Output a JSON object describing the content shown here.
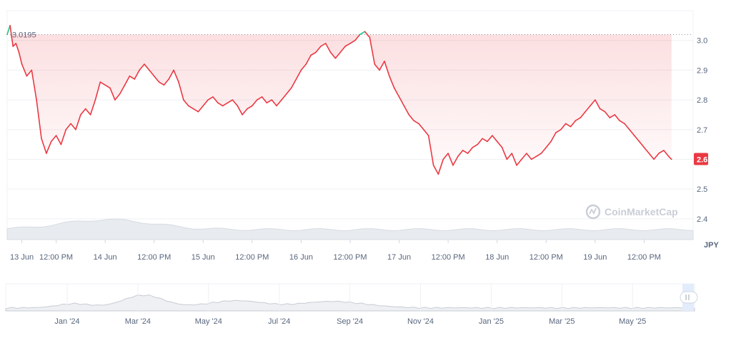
{
  "chart_data": {
    "type": "line",
    "ylabel": "JPY",
    "ylim": [
      2.33,
      3.1
    ],
    "yticks": [
      3.0,
      2.9,
      2.8,
      2.7,
      2.6,
      2.5,
      2.4
    ],
    "ytick_labels": [
      "3.0",
      "2.9",
      "2.8",
      "2.7",
      "2.6",
      "2.5",
      "2.4"
    ],
    "xlim": [
      0,
      7
    ],
    "xticks": [
      0.15,
      0.5,
      1.0,
      1.5,
      2.0,
      2.5,
      3.0,
      3.5,
      4.0,
      4.5,
      5.0,
      5.5,
      6.0,
      6.5
    ],
    "xtick_labels": [
      "13 Jun",
      "12:00 PM",
      "14 Jun",
      "12:00 PM",
      "15 Jun",
      "12:00 PM",
      "16 Jun",
      "12:00 PM",
      "17 Jun",
      "12:00 PM",
      "18 Jun",
      "12:00 PM",
      "19 Jun",
      "12:00 PM"
    ],
    "reference_line": {
      "value": 3.0195,
      "label": "3.0195"
    },
    "current_price": {
      "value": 2.6,
      "label": "2.6"
    },
    "colors": {
      "down": "#ea3943",
      "up": "#16c784",
      "current_badge": "#ea3943"
    },
    "watermark": "CoinMarketCap",
    "series": [
      {
        "x": [
          0.0,
          0.03,
          0.06,
          0.09,
          0.12,
          0.15,
          0.2,
          0.25,
          0.3,
          0.35,
          0.4,
          0.45,
          0.5,
          0.55,
          0.6,
          0.65,
          0.7,
          0.75,
          0.8,
          0.85,
          0.9,
          0.95,
          1.0,
          1.05,
          1.1,
          1.15,
          1.2,
          1.25,
          1.3,
          1.35,
          1.4,
          1.45,
          1.5,
          1.55,
          1.6,
          1.65,
          1.7,
          1.75,
          1.8,
          1.85,
          1.9,
          1.95,
          2.0,
          2.05,
          2.1,
          2.15,
          2.2,
          2.25,
          2.3,
          2.35,
          2.4,
          2.45,
          2.5,
          2.55,
          2.6,
          2.65,
          2.7,
          2.75,
          2.8,
          2.85,
          2.9,
          2.95,
          3.0,
          3.05,
          3.1,
          3.15,
          3.2,
          3.25,
          3.3,
          3.35,
          3.4,
          3.45,
          3.5,
          3.55,
          3.6,
          3.65,
          3.7,
          3.75,
          3.8,
          3.85,
          3.9,
          3.95,
          4.0,
          4.05,
          4.1,
          4.15,
          4.2,
          4.25,
          4.3,
          4.35,
          4.4,
          4.45,
          4.5,
          4.55,
          4.6,
          4.65,
          4.7,
          4.75,
          4.8,
          4.85,
          4.9,
          4.95,
          5.0,
          5.05,
          5.1,
          5.15,
          5.2,
          5.25,
          5.3,
          5.35,
          5.4,
          5.45,
          5.5,
          5.55,
          5.6,
          5.65,
          5.7,
          5.75,
          5.8,
          5.85,
          5.9,
          5.95,
          6.0,
          6.05,
          6.1,
          6.15,
          6.2,
          6.25,
          6.3,
          6.35,
          6.4,
          6.45,
          6.5,
          6.55,
          6.6,
          6.65,
          6.7,
          6.75,
          6.78
        ],
        "values": [
          3.02,
          3.05,
          2.98,
          2.99,
          2.96,
          2.92,
          2.88,
          2.9,
          2.8,
          2.67,
          2.62,
          2.66,
          2.68,
          2.65,
          2.7,
          2.72,
          2.7,
          2.75,
          2.77,
          2.75,
          2.8,
          2.86,
          2.85,
          2.84,
          2.8,
          2.82,
          2.85,
          2.88,
          2.87,
          2.9,
          2.92,
          2.9,
          2.88,
          2.86,
          2.85,
          2.87,
          2.9,
          2.86,
          2.8,
          2.78,
          2.77,
          2.76,
          2.78,
          2.8,
          2.81,
          2.79,
          2.78,
          2.79,
          2.8,
          2.78,
          2.75,
          2.77,
          2.78,
          2.8,
          2.81,
          2.79,
          2.8,
          2.78,
          2.8,
          2.82,
          2.84,
          2.87,
          2.9,
          2.92,
          2.95,
          2.96,
          2.98,
          2.99,
          2.96,
          2.94,
          2.96,
          2.98,
          2.99,
          3.0,
          3.02,
          3.03,
          3.01,
          2.92,
          2.9,
          2.93,
          2.88,
          2.84,
          2.81,
          2.78,
          2.75,
          2.73,
          2.72,
          2.7,
          2.68,
          2.58,
          2.55,
          2.6,
          2.62,
          2.58,
          2.61,
          2.63,
          2.62,
          2.64,
          2.65,
          2.67,
          2.66,
          2.68,
          2.66,
          2.64,
          2.6,
          2.62,
          2.58,
          2.6,
          2.62,
          2.6,
          2.61,
          2.62,
          2.64,
          2.66,
          2.69,
          2.7,
          2.72,
          2.71,
          2.73,
          2.74,
          2.76,
          2.78,
          2.8,
          2.77,
          2.76,
          2.74,
          2.75,
          2.73,
          2.72,
          2.7,
          2.68,
          2.66,
          2.64,
          2.62,
          2.6,
          2.62,
          2.63,
          2.61,
          2.6
        ]
      }
    ],
    "navigator": {
      "xtick_labels": [
        "Jan '24",
        "Mar '24",
        "May '24",
        "Jul '24",
        "Sep '24",
        "Nov '24",
        "Jan '25",
        "Mar '25",
        "May '25"
      ],
      "handle": "drag-handle-icon"
    }
  }
}
